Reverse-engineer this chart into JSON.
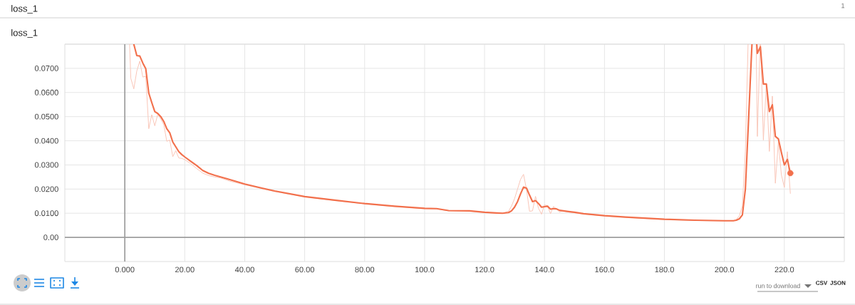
{
  "chart_data": {
    "type": "line",
    "title": "loss_1",
    "subtitle": "loss_1",
    "annotations": [
      "1",
      "run to download",
      "CSV",
      "JSON"
    ],
    "xlim": [
      -20,
      240
    ],
    "ylim": [
      -0.01,
      0.08
    ],
    "xticks": [
      {
        "value": 0,
        "label": "0.000"
      },
      {
        "value": 20,
        "label": "20.00"
      },
      {
        "value": 40,
        "label": "40.00"
      },
      {
        "value": 60,
        "label": "60.00"
      },
      {
        "value": 80,
        "label": "80.00"
      },
      {
        "value": 100,
        "label": "100.0"
      },
      {
        "value": 120,
        "label": "120.0"
      },
      {
        "value": 140,
        "label": "140.0"
      },
      {
        "value": 160,
        "label": "160.0"
      },
      {
        "value": 180,
        "label": "180.0"
      },
      {
        "value": 200,
        "label": "200.0"
      },
      {
        "value": 220,
        "label": "220.0"
      }
    ],
    "yticks": [
      {
        "value": 0,
        "label": "0.00"
      },
      {
        "value": 0.01,
        "label": "0.0100"
      },
      {
        "value": 0.02,
        "label": "0.0200"
      },
      {
        "value": 0.03,
        "label": "0.0300"
      },
      {
        "value": 0.04,
        "label": "0.0400"
      },
      {
        "value": 0.05,
        "label": "0.0500"
      },
      {
        "value": 0.06,
        "label": "0.0600"
      },
      {
        "value": 0.07,
        "label": "0.0700"
      },
      {
        "value": 0.08,
        "label": null
      }
    ],
    "grid": true,
    "series": [
      {
        "color": "#f9c6b8",
        "x": [
          1.6,
          2,
          3,
          4,
          5,
          6,
          7,
          8,
          9,
          10,
          11,
          12,
          13,
          14,
          15,
          16,
          17,
          18,
          19,
          20,
          22,
          24,
          26,
          28,
          30,
          32,
          35,
          40,
          46,
          50,
          60,
          70,
          80,
          90,
          100,
          104,
          108,
          115,
          120,
          124,
          126,
          128,
          129,
          130,
          131,
          132,
          133,
          134,
          135,
          136,
          137,
          138,
          139,
          140,
          141,
          142,
          143,
          144,
          145,
          146,
          148,
          150,
          153,
          160,
          167,
          180,
          190,
          200,
          203,
          204,
          205,
          206,
          207,
          207.9,
          208,
          210.6,
          211,
          211.9,
          212,
          212.1,
          213,
          214,
          215,
          216,
          217,
          218,
          219,
          220,
          221,
          222
        ],
        "values": [
          0.08,
          0.0659,
          0.0615,
          0.0689,
          0.073,
          0.0664,
          0.0667,
          0.045,
          0.0508,
          0.0462,
          0.051,
          0.049,
          0.0467,
          0.0398,
          0.0403,
          0.0334,
          0.0359,
          0.0329,
          0.0327,
          0.0322,
          0.0305,
          0.0285,
          0.0266,
          0.0256,
          0.025,
          0.0246,
          0.0233,
          0.0218,
          0.0201,
          0.019,
          0.0168,
          0.0153,
          0.0139,
          0.0128,
          0.0119,
          0.0118,
          0.011,
          0.0109,
          0.0103,
          0.01,
          0.01,
          0.0108,
          0.013,
          0.016,
          0.02,
          0.024,
          0.0261,
          0.0198,
          0.0108,
          0.011,
          0.017,
          0.012,
          0.0096,
          0.0135,
          0.013,
          0.0098,
          0.0128,
          0.0117,
          0.0105,
          0.011,
          0.0105,
          0.0102,
          0.0097,
          0.0089,
          0.0083,
          0.0074,
          0.007,
          0.0068,
          0.0068,
          0.0074,
          0.009,
          0.013,
          0.0357,
          0.08,
          null,
          0.08,
          0.0418,
          0.08,
          null,
          0.08,
          0.0403,
          0.0635,
          0.0356,
          0.0585,
          0.0224,
          0.0395,
          0.026,
          0.0207,
          0.0355,
          0.0182
        ]
      },
      {
        "color": "#f2704c",
        "x": [
          3,
          4,
          5,
          6,
          7,
          8,
          9,
          10,
          11,
          12,
          13,
          14,
          15,
          16,
          17,
          18,
          19,
          20,
          22,
          24,
          26,
          28,
          30,
          34,
          40,
          46,
          50,
          60,
          70,
          80,
          90,
          100,
          104,
          108,
          115,
          120,
          124,
          126,
          128,
          129,
          130,
          131,
          132,
          133,
          134,
          135,
          136,
          137,
          138,
          139,
          140,
          141,
          142,
          143,
          144,
          145,
          148,
          150,
          153,
          160,
          167,
          180,
          190,
          200,
          203,
          204,
          205,
          206,
          207,
          208,
          209,
          209.2,
          210,
          210.8,
          211,
          212,
          213,
          214,
          215,
          216,
          217,
          218,
          219,
          220,
          221,
          222
        ],
        "values": [
          0.08,
          0.0753,
          0.0751,
          0.0722,
          0.0698,
          0.0597,
          0.0558,
          0.0521,
          0.0513,
          0.05,
          0.048,
          0.045,
          0.0433,
          0.0395,
          0.0375,
          0.0355,
          0.0343,
          0.0333,
          0.0315,
          0.0297,
          0.0277,
          0.0265,
          0.0257,
          0.0243,
          0.0221,
          0.0203,
          0.0192,
          0.0169,
          0.0154,
          0.014,
          0.0129,
          0.012,
          0.0119,
          0.0111,
          0.011,
          0.0104,
          0.0101,
          0.01,
          0.0103,
          0.011,
          0.0125,
          0.0148,
          0.018,
          0.0208,
          0.0204,
          0.0175,
          0.0148,
          0.0152,
          0.014,
          0.0125,
          0.0127,
          0.0129,
          0.0117,
          0.0119,
          0.0118,
          0.0112,
          0.0107,
          0.0104,
          0.0098,
          0.009,
          0.0084,
          0.0075,
          0.0071,
          0.0069,
          0.0069,
          0.0071,
          0.0077,
          0.0093,
          0.02,
          0.047,
          0.0748,
          0.08,
          null,
          0.08,
          0.0762,
          0.0789,
          0.0635,
          0.0635,
          0.0521,
          0.0549,
          0.0418,
          0.0408,
          0.0352,
          0.03,
          0.0323,
          0.0266
        ]
      },
      {
        "type": "scatter",
        "color": "#f2704c",
        "marker": "circle",
        "x": [
          222
        ],
        "values": [
          0.0266
        ]
      }
    ]
  }
}
